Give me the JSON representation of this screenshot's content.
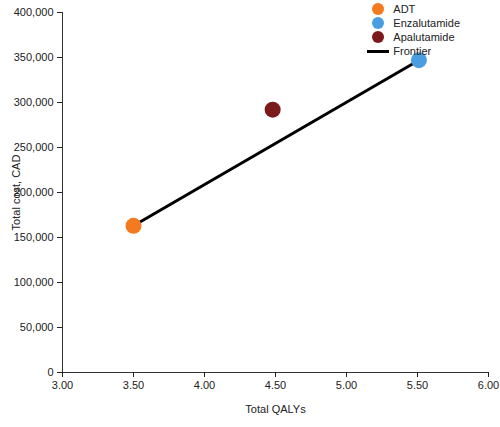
{
  "chart_data": {
    "type": "scatter",
    "x_label": "Total QALYs",
    "y_label": "Total cost, CAD",
    "xlim": [
      3,
      6
    ],
    "xticks": [
      {
        "value": 3,
        "label": "3.00"
      },
      {
        "value": 3.5,
        "label": "3.50"
      },
      {
        "value": 4,
        "label": "4.00"
      },
      {
        "value": 4.5,
        "label": "4.50"
      },
      {
        "value": 5,
        "label": "5.00"
      },
      {
        "value": 5.5,
        "label": "5.50"
      },
      {
        "value": 6,
        "label": "6.00"
      }
    ],
    "ylim": [
      0,
      400000
    ],
    "yticks": [
      0,
      {
        "value": 50000,
        "label": "50,000"
      },
      {
        "value": 100000,
        "label": "100,000"
      },
      {
        "value": 150000,
        "label": "150,000"
      },
      {
        "value": 200000,
        "label": "200,000"
      },
      {
        "value": 250000,
        "label": "250,000"
      },
      {
        "value": 300000,
        "label": "300,000"
      },
      {
        "value": 350000,
        "label": "350,000"
      },
      {
        "value": 400000,
        "label": "400,000"
      }
    ],
    "grid": false,
    "legend": "top-right",
    "series": [
      {
        "name": "ADT",
        "type": "scatter",
        "marker": "circle",
        "color": "#f47a20",
        "x": [
          3.5
        ],
        "values": [
          163000
        ]
      },
      {
        "name": "Enzalutamide",
        "type": "scatter",
        "marker": "circle",
        "color": "#4a9de0",
        "x": [
          5.51
        ],
        "values": [
          347000
        ]
      },
      {
        "name": "Apalutamide",
        "type": "scatter",
        "marker": "circle",
        "color": "#7a1a1a",
        "x": [
          4.48
        ],
        "values": [
          292000
        ]
      },
      {
        "name": "Frontier",
        "type": "line",
        "line_style": "solid",
        "color": "#000000",
        "x": [
          3.5,
          5.51
        ],
        "values": [
          163000,
          347000
        ]
      }
    ]
  }
}
